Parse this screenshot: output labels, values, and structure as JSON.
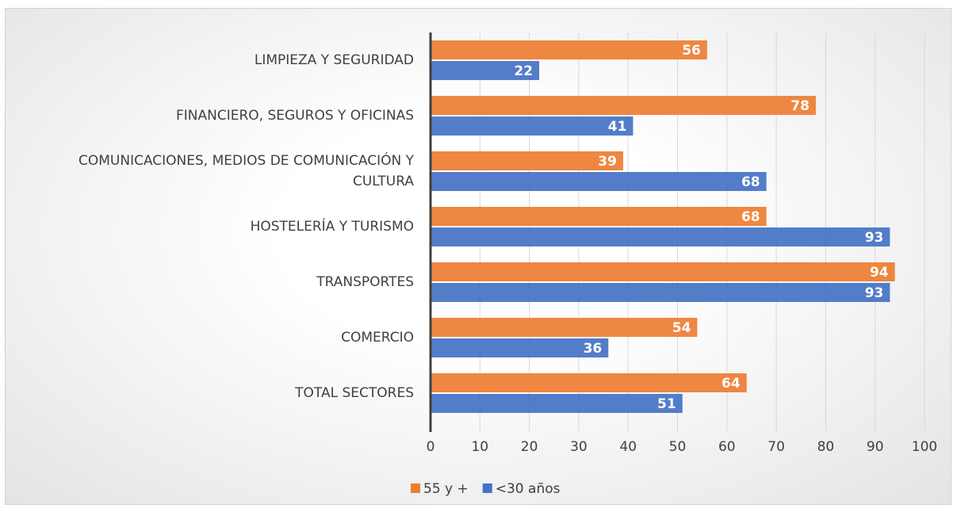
{
  "chart_data": {
    "type": "hbar",
    "categories": [
      "LIMPIEZA Y SEGURIDAD",
      "FINANCIERO, SEGUROS Y OFICINAS",
      "COMUNICACIONES, MEDIOS DE COMUNICACIÓN Y CULTURA",
      "HOSTELERÍA Y TURISMO",
      "TRANSPORTES",
      "COMERCIO",
      "TOTAL SECTORES"
    ],
    "series": [
      {
        "name": "55 y +",
        "color": "#ed7d31",
        "values": [
          56,
          78,
          39,
          68,
          94,
          54,
          64
        ]
      },
      {
        "name": "<30 años",
        "color": "#4472c4",
        "values": [
          22,
          41,
          68,
          93,
          93,
          36,
          51
        ]
      }
    ],
    "xlim": [
      0,
      100
    ],
    "xticks": [
      0,
      10,
      20,
      30,
      40,
      50,
      60,
      70,
      80,
      90,
      100
    ],
    "grid": true,
    "legend": "bottom"
  }
}
